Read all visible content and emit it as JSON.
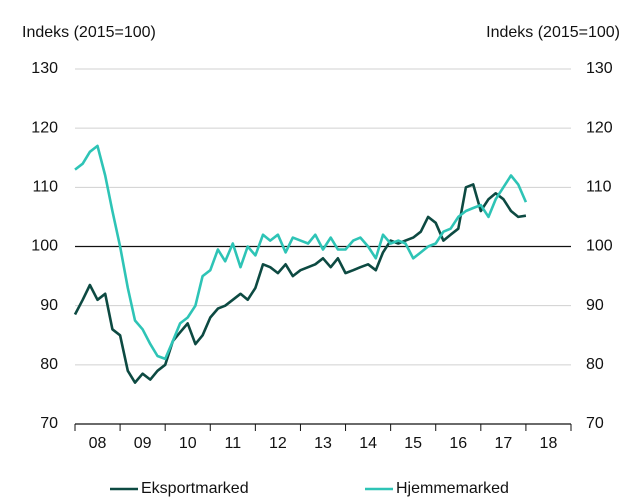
{
  "chart_data": {
    "type": "line",
    "ylabel": "Indeks (2015=100)",
    "y2label": "Indeks (2015=100)",
    "x": [
      2008,
      2008.17,
      2008.33,
      2008.5,
      2008.67,
      2008.83,
      2009,
      2009.17,
      2009.33,
      2009.5,
      2009.67,
      2009.83,
      2010,
      2010.17,
      2010.33,
      2010.5,
      2010.67,
      2010.83,
      2011,
      2011.17,
      2011.33,
      2011.5,
      2011.67,
      2011.83,
      2012,
      2012.17,
      2012.33,
      2012.5,
      2012.67,
      2012.83,
      2013,
      2013.17,
      2013.33,
      2013.5,
      2013.67,
      2013.83,
      2014,
      2014.17,
      2014.33,
      2014.5,
      2014.67,
      2014.83,
      2015,
      2015.17,
      2015.33,
      2015.5,
      2015.67,
      2015.83,
      2016,
      2016.17,
      2016.33,
      2016.5,
      2016.67,
      2016.83,
      2017,
      2017.17,
      2017.33,
      2017.5,
      2017.67,
      2017.83,
      2018
    ],
    "series": [
      {
        "name": "Eksportmarked",
        "color": "#0d4a42",
        "values": [
          88.5,
          91,
          93.5,
          91,
          92,
          86,
          85,
          79,
          77,
          78.5,
          77.5,
          79,
          80,
          84,
          85.5,
          87,
          83.5,
          85,
          88,
          89.5,
          90,
          91,
          92,
          91,
          93,
          97,
          96.5,
          95.5,
          97,
          95,
          96,
          96.5,
          97,
          98,
          96.5,
          98,
          95.5,
          96,
          96.5,
          97,
          96,
          99,
          101,
          100.5,
          101,
          101.5,
          102.5,
          105,
          104,
          101,
          102,
          103,
          110,
          110.5,
          106,
          108,
          109,
          108,
          106,
          105,
          105.2
        ]
      },
      {
        "name": "Hjemmemarked",
        "color": "#2ec4b6",
        "values": [
          113,
          114,
          116,
          117,
          112,
          106,
          100,
          93,
          87.5,
          86,
          83.5,
          81.5,
          81,
          84,
          87,
          88,
          90,
          95,
          96,
          99.5,
          97.5,
          100.5,
          96.5,
          100,
          98.5,
          102,
          101,
          102,
          99,
          101.5,
          101,
          100.5,
          102,
          99.5,
          101.5,
          99.5,
          99.5,
          101,
          101.5,
          100,
          98,
          102,
          100.5,
          101,
          100.5,
          98,
          99,
          100,
          100.5,
          102.5,
          103,
          105,
          106,
          106.5,
          107,
          105,
          108,
          110,
          112,
          110.5,
          107.5
        ]
      }
    ],
    "xlim": [
      2008,
      2019
    ],
    "xticks": [
      {
        "value": 2008.5,
        "label": "08"
      },
      {
        "value": 2009.5,
        "label": "09"
      },
      {
        "value": 2010.5,
        "label": "10"
      },
      {
        "value": 2011.5,
        "label": "11"
      },
      {
        "value": 2012.5,
        "label": "12"
      },
      {
        "value": 2013.5,
        "label": "13"
      },
      {
        "value": 2014.5,
        "label": "14"
      },
      {
        "value": 2015.5,
        "label": "15"
      },
      {
        "value": 2016.5,
        "label": "16"
      },
      {
        "value": 2017.5,
        "label": "17"
      },
      {
        "value": 2018.5,
        "label": "18"
      }
    ],
    "ylim": [
      70,
      130
    ],
    "yticks": [
      70,
      80,
      90,
      100,
      110,
      120,
      130
    ],
    "y2lim": [
      70,
      130
    ],
    "y2ticks": [
      70,
      80,
      90,
      100,
      110,
      120,
      130
    ],
    "reference_line": 100,
    "grid": true,
    "legend": "bottom"
  }
}
